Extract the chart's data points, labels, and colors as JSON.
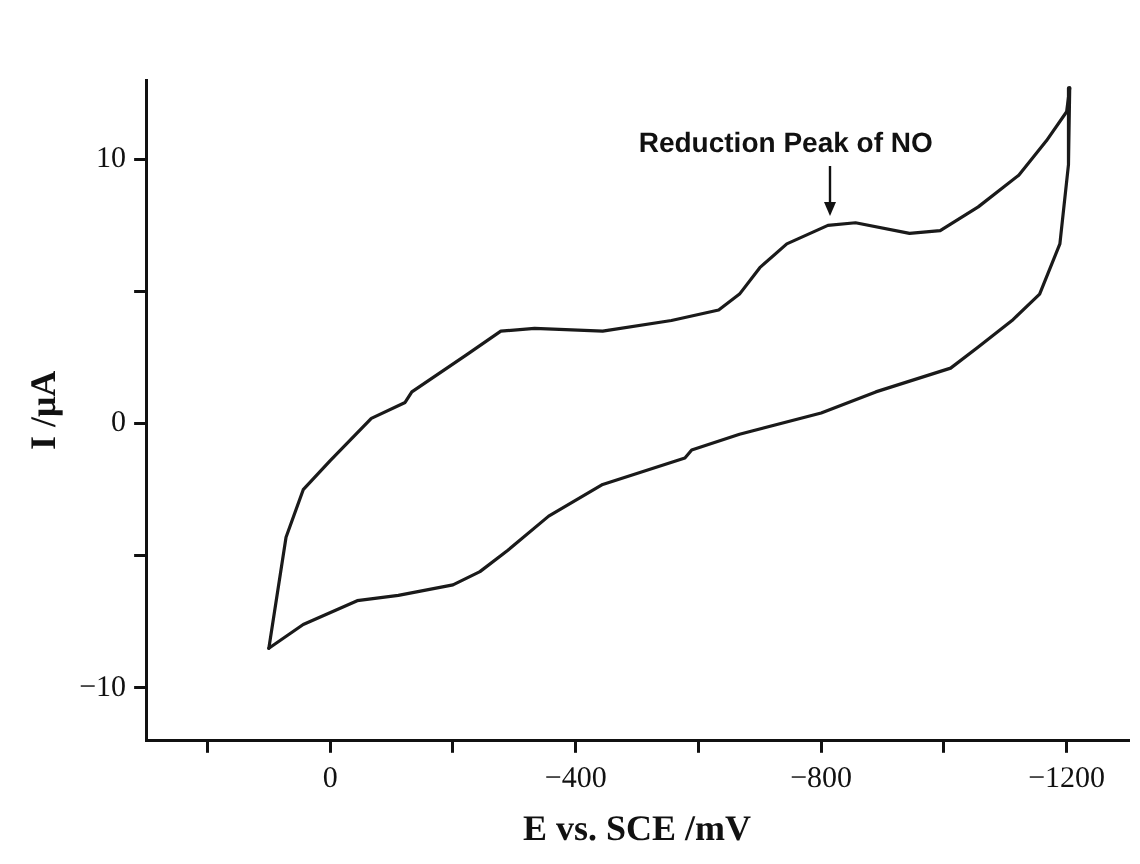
{
  "chart_data": {
    "type": "line",
    "xlabel": "E vs. SCE /mV",
    "ylabel": "I /μA",
    "xlim": [
      300,
      -1300
    ],
    "ylim": [
      -12,
      13
    ],
    "xticks": [
      {
        "value": 200,
        "label": null
      },
      {
        "value": 0,
        "label": "0"
      },
      {
        "value": -200,
        "label": null
      },
      {
        "value": -400,
        "label": "−400"
      },
      {
        "value": -600,
        "label": null
      },
      {
        "value": -800,
        "label": "−800"
      },
      {
        "value": -1000,
        "label": null
      },
      {
        "value": -1200,
        "label": "−1200"
      }
    ],
    "yticks": [
      {
        "value": -10,
        "label": "−10"
      },
      {
        "value": -5,
        "label": null
      },
      {
        "value": 0,
        "label": "0"
      },
      {
        "value": 5,
        "label": null
      },
      {
        "value": 10,
        "label": "10"
      }
    ],
    "grid": false,
    "legend": false,
    "marker": "none",
    "line_style": "solid",
    "annotations": [
      {
        "text": "Reduction Peak of NO",
        "x": -814,
        "y": 7.8
      }
    ],
    "series": [
      {
        "color": "#1a1a1a",
        "x": [
          100,
          72,
          44,
          0,
          -67,
          -122,
          -133,
          -222,
          -278,
          -333,
          -444,
          -556,
          -633,
          -667,
          -700,
          -744,
          -811,
          -856,
          -944,
          -994,
          -1056,
          -1122,
          -1167,
          -1200,
          -1205
        ],
        "values": [
          -8.5,
          -4.3,
          -2.5,
          -1.4,
          0.2,
          0.8,
          1.2,
          2.6,
          3.5,
          3.6,
          3.5,
          3.9,
          4.3,
          4.9,
          5.9,
          6.8,
          7.5,
          7.6,
          7.2,
          7.3,
          8.2,
          9.4,
          10.7,
          11.8,
          12.7
        ]
      },
      {
        "color": "#1a1a1a",
        "x": [
          -1205,
          -1203,
          -1189,
          -1156,
          -1111,
          -1056,
          -1011,
          -889,
          -800,
          -667,
          -589,
          -578,
          -444,
          -356,
          -289,
          -244,
          -200,
          -111,
          -44,
          44,
          100
        ],
        "values": [
          12.7,
          9.8,
          6.8,
          4.9,
          3.9,
          2.9,
          2.1,
          1.2,
          0.4,
          -0.4,
          -1.0,
          -1.3,
          -2.3,
          -3.5,
          -4.8,
          -5.6,
          -6.1,
          -6.5,
          -6.7,
          -7.6,
          -8.5
        ]
      }
    ]
  }
}
